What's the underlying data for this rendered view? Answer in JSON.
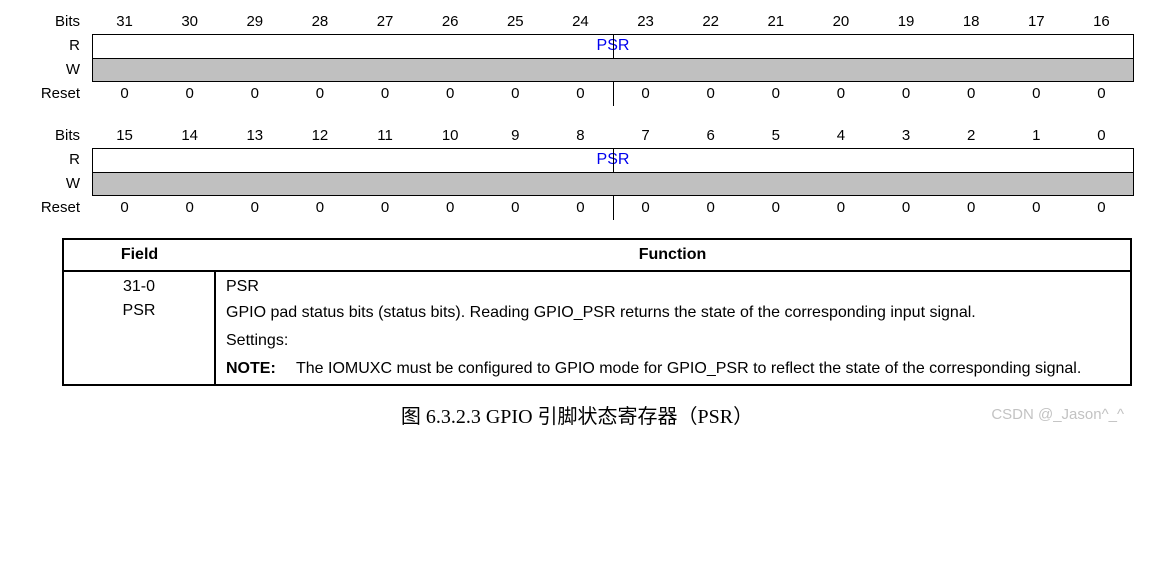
{
  "labels": {
    "bits": "Bits",
    "r": "R",
    "w": "W",
    "reset": "Reset"
  },
  "upper": {
    "bits": [
      "31",
      "30",
      "29",
      "28",
      "27",
      "26",
      "25",
      "24",
      "23",
      "22",
      "21",
      "20",
      "19",
      "18",
      "17",
      "16"
    ],
    "field": "PSR",
    "reset": [
      "0",
      "0",
      "0",
      "0",
      "0",
      "0",
      "0",
      "0",
      "0",
      "0",
      "0",
      "0",
      "0",
      "0",
      "0",
      "0"
    ]
  },
  "lower": {
    "bits": [
      "15",
      "14",
      "13",
      "12",
      "11",
      "10",
      "9",
      "8",
      "7",
      "6",
      "5",
      "4",
      "3",
      "2",
      "1",
      "0"
    ],
    "field": "PSR",
    "reset": [
      "0",
      "0",
      "0",
      "0",
      "0",
      "0",
      "0",
      "0",
      "0",
      "0",
      "0",
      "0",
      "0",
      "0",
      "0",
      "0"
    ]
  },
  "table": {
    "headers": {
      "field": "Field",
      "function": "Function"
    },
    "row": {
      "range": "31-0",
      "name": "PSR",
      "line1": "PSR",
      "line2": "GPIO pad status bits (status bits). Reading GPIO_PSR returns the state of the corresponding input signal.",
      "settings": "Settings:",
      "noteLabel": "NOTE:",
      "noteText": "The IOMUXC must be configured to GPIO mode for GPIO_PSR to reflect the state of the corresponding signal."
    }
  },
  "caption": "图 6.3.2.3 GPIO 引脚状态寄存器（PSR）",
  "watermark": "CSDN @_Jason^_^",
  "colors": {
    "link": "#0000ee",
    "shade": "#c0c0c0",
    "border": "#000000",
    "background": "#ffffff"
  }
}
